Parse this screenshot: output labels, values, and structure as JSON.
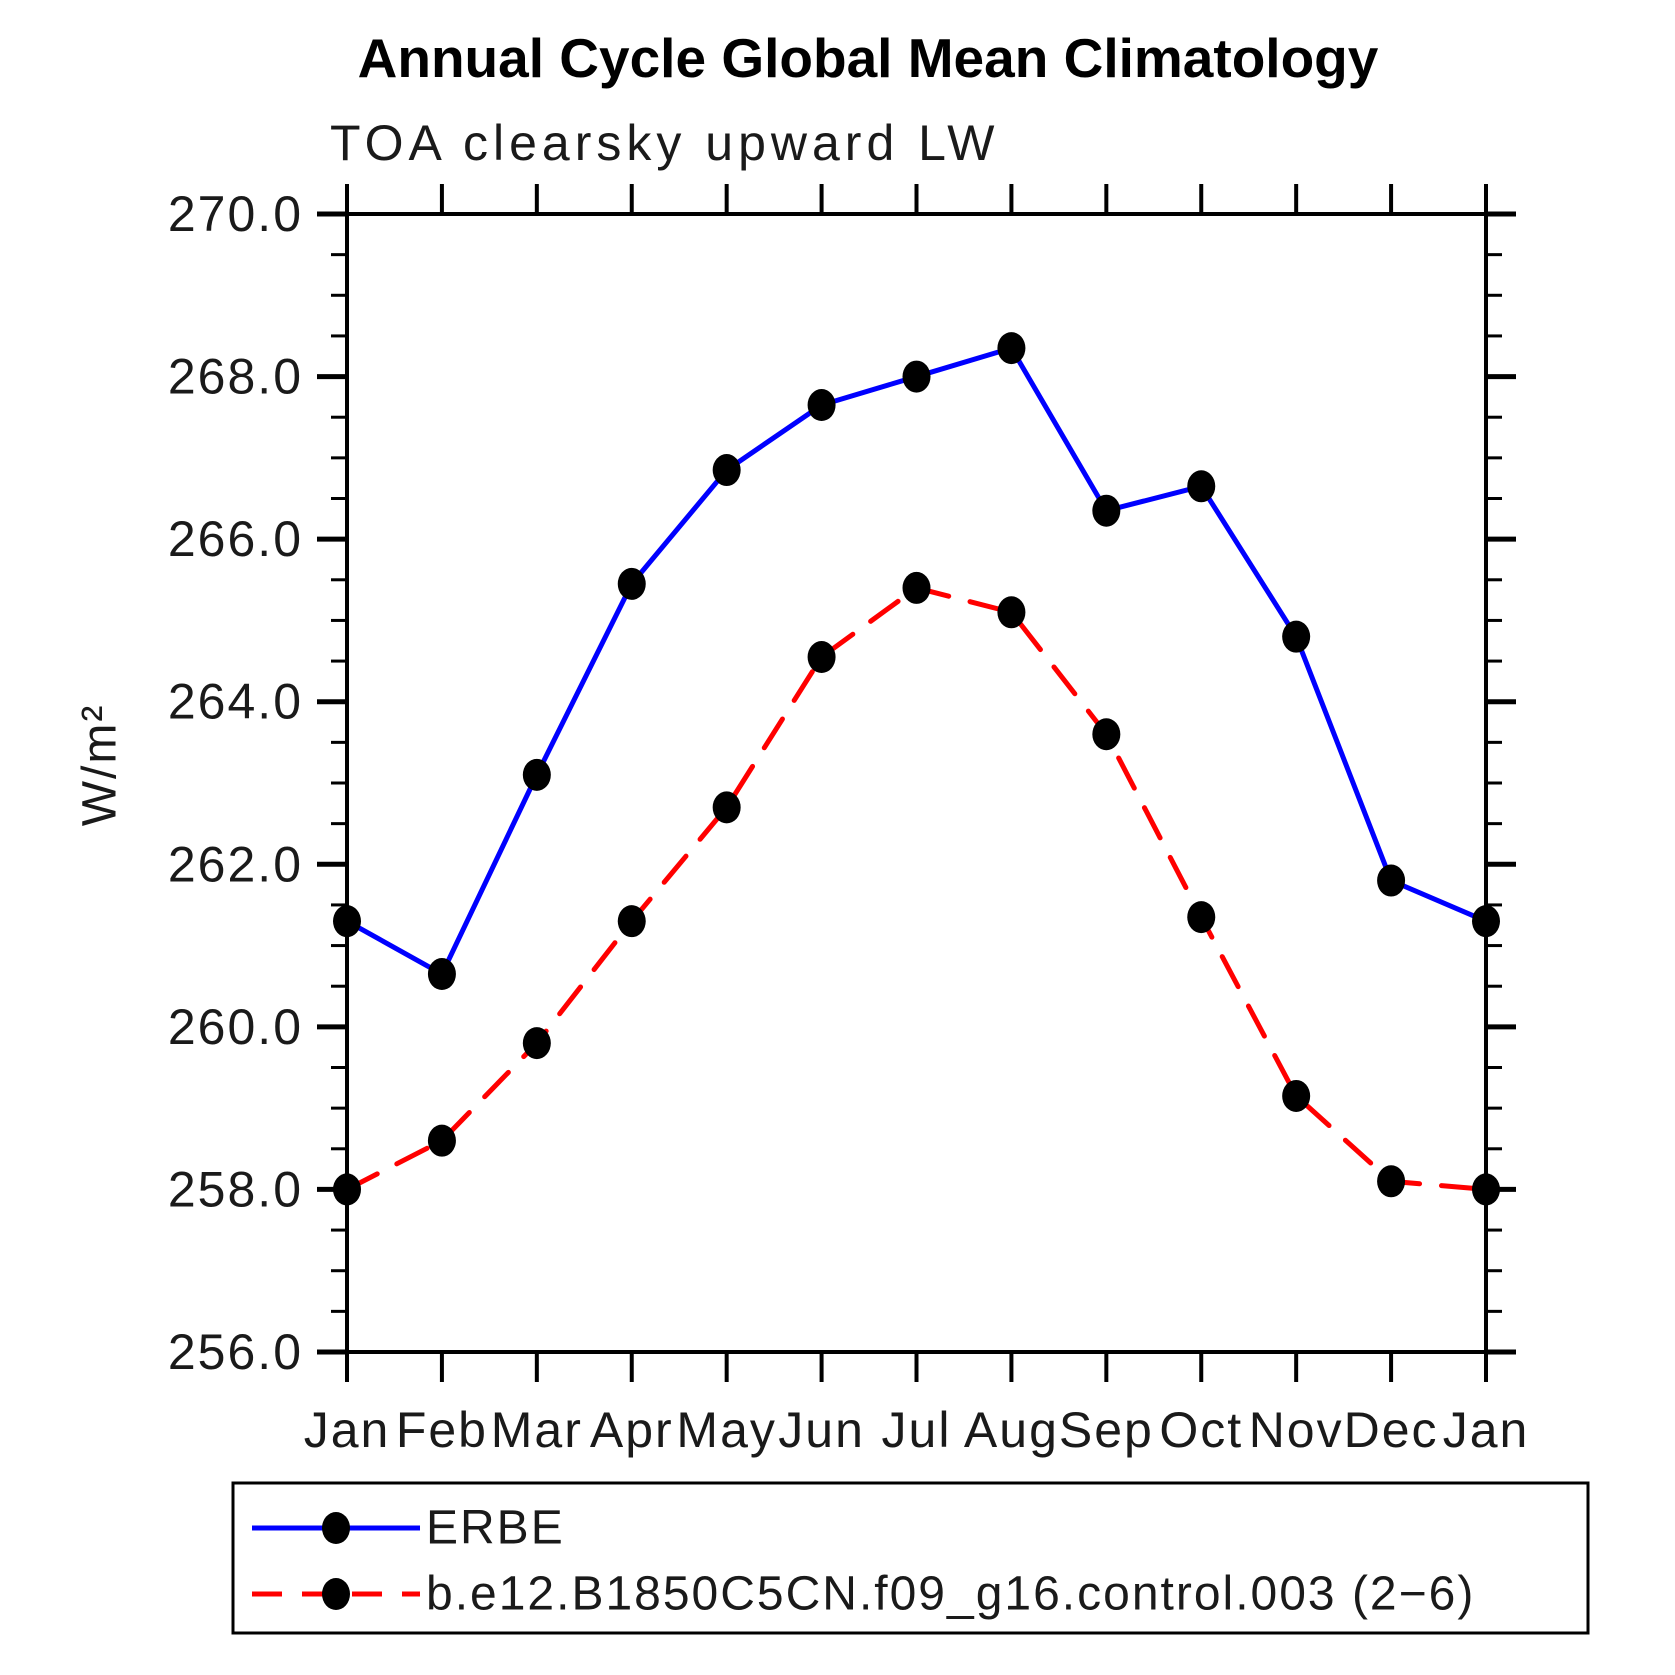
{
  "title": "Annual Cycle Global Mean Climatology",
  "subtitle": "TOA clearsky upward LW",
  "ylabel": "W/m²",
  "chart_data": {
    "type": "line",
    "categories": [
      "Jan",
      "Feb",
      "Mar",
      "Apr",
      "May",
      "Jun",
      "Jul",
      "Aug",
      "Sep",
      "Oct",
      "Nov",
      "Dec",
      "Jan"
    ],
    "series": [
      {
        "name": "ERBE",
        "color": "#0000ff",
        "style": "solid",
        "values": [
          261.3,
          260.65,
          263.1,
          265.45,
          266.85,
          267.65,
          268.0,
          268.35,
          266.35,
          266.65,
          264.8,
          261.8,
          261.3
        ]
      },
      {
        "name": "b.e12.B1850C5CN.f09_g16.control.003 (2−6)",
        "color": "#ff0000",
        "style": "dashed",
        "values": [
          258.0,
          258.6,
          259.8,
          261.3,
          262.7,
          264.55,
          265.4,
          265.1,
          263.6,
          261.35,
          259.15,
          258.1,
          258.0
        ]
      }
    ],
    "ylim": [
      256.0,
      270.0
    ],
    "ytick_major": [
      256,
      258,
      260,
      262,
      264,
      266,
      268,
      270
    ],
    "ytick_minor_step": 0.5,
    "tick_format": ".1f",
    "marker_color": "#000000",
    "axis_color": "#000000",
    "grid": "off",
    "legend_position": "bottom"
  }
}
